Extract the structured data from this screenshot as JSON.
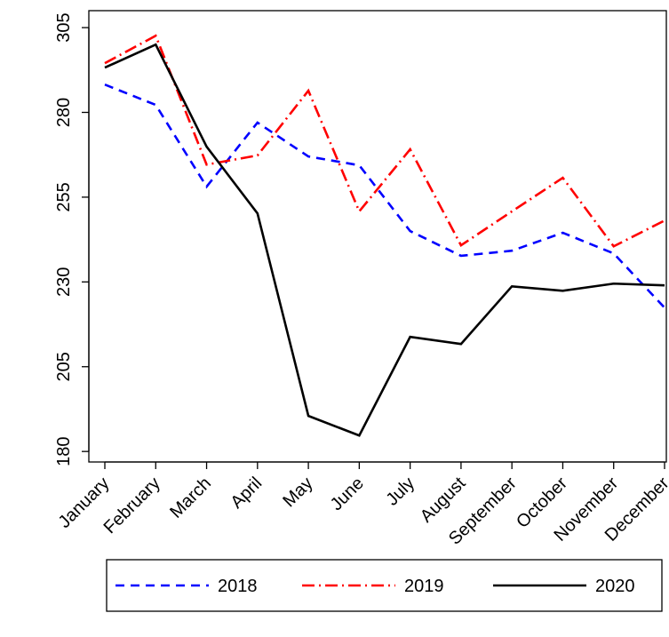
{
  "chart_data": {
    "type": "line",
    "categories": [
      "January",
      "February",
      "March",
      "April",
      "May",
      "June",
      "July",
      "August",
      "September",
      "October",
      "November",
      "December"
    ],
    "series": [
      {
        "name": "2018",
        "color": "#0000ff",
        "dash": "10 7",
        "values": [
          288.2,
          282.2,
          258.1,
          277,
          267,
          264.4,
          245,
          237.7,
          239.2,
          244.5,
          238.4,
          222.4
        ]
      },
      {
        "name": "2019",
        "color": "#ff0000",
        "dash": "14 5 2 5",
        "values": [
          294.5,
          302.6,
          264.6,
          267.3,
          286.4,
          250.8,
          269.1,
          240.8,
          250.8,
          260.7,
          240.5,
          248.1
        ]
      },
      {
        "name": "2020",
        "color": "#000000",
        "dash": "none",
        "values": [
          293.2,
          300,
          269.9,
          250.2,
          190.5,
          184.7,
          213.8,
          211.7,
          228.7,
          227.4,
          229.5,
          229
        ]
      }
    ],
    "ylim": [
      176.9,
      310
    ],
    "yticks": [
      180,
      205,
      230,
      255,
      280,
      305
    ],
    "grid": false
  }
}
